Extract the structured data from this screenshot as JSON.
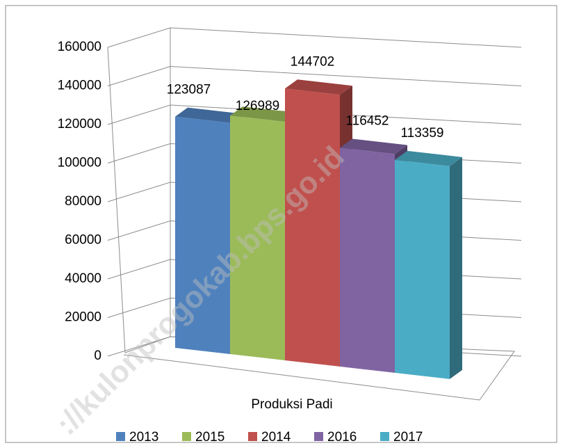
{
  "chart_data": {
    "type": "bar3d",
    "categories": [
      "Produksi Padi"
    ],
    "series": [
      {
        "name": "2013",
        "color": "#4f81bd",
        "values": [
          123087
        ]
      },
      {
        "name": "2015",
        "color": "#9bbb59",
        "values": [
          126989
        ]
      },
      {
        "name": "2014",
        "color": "#c0504d",
        "values": [
          144702
        ]
      },
      {
        "name": "2016",
        "color": "#8064a2",
        "values": [
          116452
        ]
      },
      {
        "name": "2017",
        "color": "#4bacc6",
        "values": [
          113359
        ]
      }
    ],
    "ylim": [
      0,
      160000
    ],
    "yticks": [
      0,
      20000,
      40000,
      60000,
      80000,
      100000,
      120000,
      140000,
      160000
    ],
    "grid": true,
    "legend": "bottom",
    "watermark": "://kulonprogokab.bps.go.id"
  }
}
